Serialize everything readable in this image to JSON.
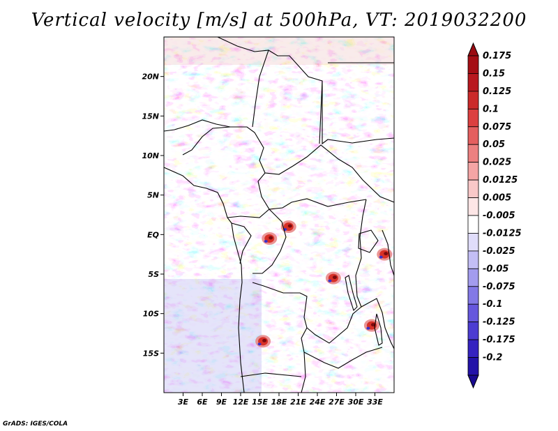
{
  "title": "Vertical velocity [m/s] at 500hPa, VT: 2019032200",
  "credit": "GrADS: IGES/COLA",
  "map": {
    "lon_range": [
      0,
      36
    ],
    "lat_range": [
      -20,
      25
    ],
    "lon_ticks": [
      {
        "lon": 3,
        "label": "3E"
      },
      {
        "lon": 6,
        "label": "6E"
      },
      {
        "lon": 9,
        "label": "9E"
      },
      {
        "lon": 12,
        "label": "12E"
      },
      {
        "lon": 15,
        "label": "15E"
      },
      {
        "lon": 18,
        "label": "18E"
      },
      {
        "lon": 21,
        "label": "21E"
      },
      {
        "lon": 24,
        "label": "24E"
      },
      {
        "lon": 27,
        "label": "27E"
      },
      {
        "lon": 30,
        "label": "30E"
      },
      {
        "lon": 33,
        "label": "33E"
      }
    ],
    "lat_ticks": [
      {
        "lat": 20,
        "label": "20N"
      },
      {
        "lat": 15,
        "label": "15N"
      },
      {
        "lat": 10,
        "label": "10N"
      },
      {
        "lat": 5,
        "label": "5N"
      },
      {
        "lat": 0,
        "label": "EQ"
      },
      {
        "lat": -5,
        "label": "5S"
      },
      {
        "lat": -10,
        "label": "10S"
      },
      {
        "lat": -15,
        "label": "15S"
      }
    ],
    "field": "vertical velocity at 500hPa",
    "colors": {
      "positive": "#d73027",
      "negative": "#3a30c8",
      "neutral": "#ffffff"
    },
    "hotspots": [
      {
        "lon": 19.5,
        "lat": 1.0,
        "sign": "positive"
      },
      {
        "lon": 16.5,
        "lat": -0.5,
        "sign": "positive"
      },
      {
        "lon": 26.5,
        "lat": -5.5,
        "sign": "positive"
      },
      {
        "lon": 15.5,
        "lat": -13.5,
        "sign": "positive"
      },
      {
        "lon": 34.5,
        "lat": -2.5,
        "sign": "positive"
      },
      {
        "lon": 32.5,
        "lat": -11.5,
        "sign": "positive"
      }
    ]
  },
  "colorbar": {
    "levels": [
      {
        "label": "0.175",
        "color": "#a50f15"
      },
      {
        "label": "0.15",
        "color": "#b8191f"
      },
      {
        "label": "0.125",
        "color": "#cb2a2a"
      },
      {
        "label": "0.1",
        "color": "#dc4040"
      },
      {
        "label": "0.075",
        "color": "#e45f5f"
      },
      {
        "label": "0.05",
        "color": "#ec8080"
      },
      {
        "label": "0.025",
        "color": "#f4a5a5"
      },
      {
        "label": "0.0125",
        "color": "#f9c8c8"
      },
      {
        "label": "0.005",
        "color": "#fde6e6"
      },
      {
        "label": "-0.005",
        "color": "#ffffff"
      },
      {
        "label": "-0.0125",
        "color": "#e0ddfa"
      },
      {
        "label": "-0.025",
        "color": "#c3bef5"
      },
      {
        "label": "-0.05",
        "color": "#a39cee"
      },
      {
        "label": "-0.075",
        "color": "#8379e6"
      },
      {
        "label": "-0.1",
        "color": "#6657dd"
      },
      {
        "label": "-0.125",
        "color": "#4c3cd2"
      },
      {
        "label": "-0.175",
        "color": "#3523c0"
      },
      {
        "label": "-0.2",
        "color": "#2312a8"
      }
    ],
    "top_color": "#9a0c12",
    "bottom_color": "#190a90"
  }
}
